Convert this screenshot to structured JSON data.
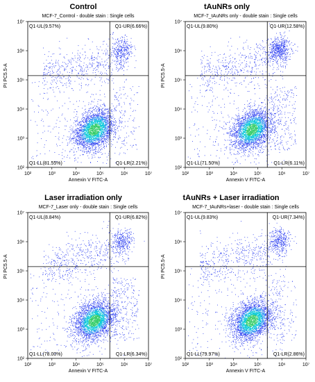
{
  "chart_data": [
    {
      "type": "scatter",
      "title": "Control",
      "subtitle": "MCF-7_Control - double stain : Single cells",
      "xlabel": "Annexin V FITC-A",
      "ylabel": "PI PC5.5-A",
      "xscale": "log",
      "yscale": "log",
      "xlim": [
        100,
        10000000
      ],
      "ylim": [
        100,
        10000000
      ],
      "x_ticks": [
        "10²",
        "10³",
        "10⁴",
        "10⁵",
        "10⁶",
        "10⁷"
      ],
      "y_ticks": [
        "10²",
        "10³",
        "10⁴",
        "10⁵",
        "10⁶",
        "10⁷"
      ],
      "gate": {
        "x": 250000,
        "y": 140000
      },
      "quadrants": [
        {
          "name": "Q1-UL",
          "percent": "9.57%"
        },
        {
          "name": "Q1-UR",
          "percent": "6.66%"
        },
        {
          "name": "Q1-LL",
          "percent": "81.55%"
        },
        {
          "name": "Q1-LR",
          "percent": "2.21%"
        }
      ]
    },
    {
      "type": "scatter",
      "title": "tAuNRs only",
      "subtitle": "MCF-7_tAuNRs only - double stain : Single cells",
      "xlabel": "Annexin V FITC-A",
      "ylabel": "PI PC5.5-A",
      "xscale": "log",
      "yscale": "log",
      "xlim": [
        100,
        10000000
      ],
      "ylim": [
        100,
        10000000
      ],
      "x_ticks": [
        "10²",
        "10³",
        "10⁴",
        "10⁵",
        "10⁶",
        "10⁷"
      ],
      "y_ticks": [
        "10²",
        "10³",
        "10⁴",
        "10⁵",
        "10⁶",
        "10⁷"
      ],
      "gate": {
        "x": 250000,
        "y": 140000
      },
      "quadrants": [
        {
          "name": "Q1-UL",
          "percent": "9.80%"
        },
        {
          "name": "Q1-UR",
          "percent": "12.58%"
        },
        {
          "name": "Q1-LL",
          "percent": "71.50%"
        },
        {
          "name": "Q1-LR",
          "percent": "6.11%"
        }
      ]
    },
    {
      "type": "scatter",
      "title": "Laser irradiation only",
      "subtitle": "MCF-7_Laser only - double stain : Single cells",
      "xlabel": "Annexin V FITC-A",
      "ylabel": "PI PC5.5-A",
      "xscale": "log",
      "yscale": "log",
      "xlim": [
        100,
        10000000
      ],
      "ylim": [
        100,
        10000000
      ],
      "x_ticks": [
        "10²",
        "10³",
        "10⁴",
        "10⁵",
        "10⁶",
        "10⁷"
      ],
      "y_ticks": [
        "10²",
        "10³",
        "10⁴",
        "10⁵",
        "10⁶",
        "10⁷"
      ],
      "gate": {
        "x": 250000,
        "y": 140000
      },
      "quadrants": [
        {
          "name": "Q1-UL",
          "percent": "8.84%"
        },
        {
          "name": "Q1-UR",
          "percent": "6.82%"
        },
        {
          "name": "Q1-LL",
          "percent": "78.00%"
        },
        {
          "name": "Q1-LR",
          "percent": "6.34%"
        }
      ]
    },
    {
      "type": "scatter",
      "title": "tAuNRs + Laser irradiation",
      "subtitle": "MCF-7_tAuNRs+laser - double stain : Single cells",
      "xlabel": "Annexin V FITC-A",
      "ylabel": "PI PC5.5-A",
      "xscale": "log",
      "yscale": "log",
      "xlim": [
        100,
        10000000
      ],
      "ylim": [
        100,
        10000000
      ],
      "x_ticks": [
        "10²",
        "10³",
        "10⁴",
        "10⁵",
        "10⁶",
        "10⁷"
      ],
      "y_ticks": [
        "10²",
        "10³",
        "10⁴",
        "10⁵",
        "10⁶",
        "10⁷"
      ],
      "gate": {
        "x": 250000,
        "y": 140000
      },
      "quadrants": [
        {
          "name": "Q1-UL",
          "percent": "9.83%"
        },
        {
          "name": "Q1-UR",
          "percent": "7.34%"
        },
        {
          "name": "Q1-LL",
          "percent": "79.97%"
        },
        {
          "name": "Q1-LR",
          "percent": "2.86%"
        }
      ]
    }
  ],
  "colors": {
    "sparse": "#2a3cf0",
    "medium": "#00c8d8",
    "dense": "#33cc66",
    "axis": "#000000",
    "gate": "#000000"
  }
}
